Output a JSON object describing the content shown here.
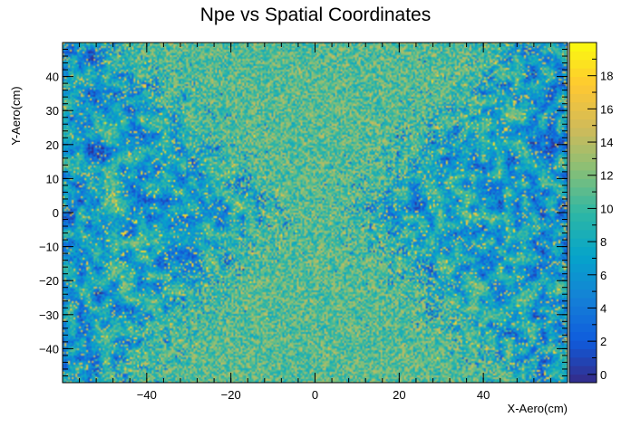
{
  "chart_data": {
    "type": "heatmap",
    "title": "Npe vs Spatial Coordinates",
    "xlabel": "X-Aero(cm)",
    "ylabel": "Y-Aero(cm)",
    "zlabel": "",
    "xlim": [
      -60,
      60
    ],
    "ylim": [
      -50,
      50
    ],
    "zlim": [
      -0.5,
      20
    ],
    "x_ticks": [
      -40,
      -20,
      0,
      20,
      40
    ],
    "x_tick_labels": [
      "−40",
      "−20",
      "0",
      "20",
      "40"
    ],
    "y_ticks": [
      -40,
      -30,
      -20,
      -10,
      0,
      10,
      20,
      30,
      40
    ],
    "y_tick_labels": [
      "−40",
      "−30",
      "−20",
      "−10",
      "0",
      "10",
      "20",
      "30",
      "40"
    ],
    "z_ticks": [
      0,
      2,
      4,
      6,
      8,
      10,
      12,
      14,
      16,
      18
    ],
    "z_tick_labels": [
      "0",
      "2",
      "4",
      "6",
      "8",
      "10",
      "12",
      "14",
      "16",
      "18"
    ],
    "colormap": [
      "#352a87",
      "#0f5cdd",
      "#1481d6",
      "#06a4ca",
      "#2eb7a4",
      "#87bf77",
      "#d1bb59",
      "#fec832",
      "#f9fb0e"
    ],
    "description_of_values": "Npe values range 0-20; central X-shaped band (|x| < ~0.6*|y| plus center) has high mixed yellow/green values around 10-14, outer edges (|x| > 40) lower, mostly blue 2-8 with scattered yellow",
    "grid": false,
    "legend": "colorbar-right"
  }
}
